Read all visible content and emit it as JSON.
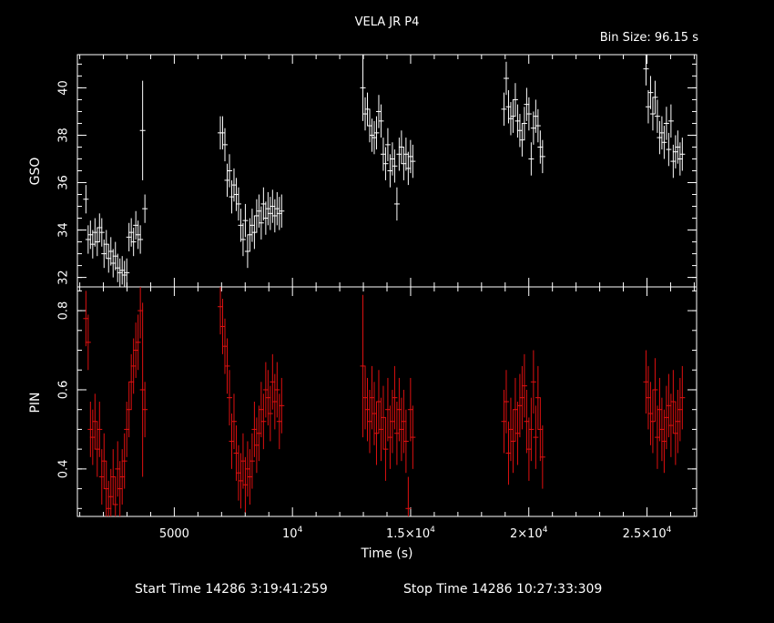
{
  "header": {
    "title": "VELA JR P4",
    "bin_size": "Bin Size: 96.15 s"
  },
  "footer": {
    "start_time": "Start Time 14286  3:19:41:259",
    "stop_time": "Stop Time 14286 10:27:33:309"
  },
  "colors": {
    "background": "#000000",
    "axes": "#ffffff",
    "gso": "#ffffff",
    "pin": "#e01010"
  },
  "chart_data": [
    {
      "type": "scatter",
      "name": "gso",
      "ylabel": "GSO",
      "xlim": [
        900,
        27100
      ],
      "ylim": [
        31.6,
        41.4
      ],
      "yticks": [
        32,
        34,
        36,
        38,
        40
      ],
      "ytick_labels": [
        "32",
        "34",
        "36",
        "38",
        "40"
      ],
      "grid": false,
      "series": [
        {
          "color": "#ffffff",
          "x": [
            1260,
            1356,
            1452,
            1548,
            1644,
            1740,
            1836,
            1932,
            2028,
            2124,
            2220,
            2316,
            2412,
            2508,
            2604,
            2700,
            2796,
            2892,
            2988,
            3084,
            3180,
            3276,
            3372,
            3468,
            3564,
            3660,
            3756,
            6950,
            7046,
            7142,
            7238,
            7334,
            7430,
            7526,
            7622,
            7718,
            7814,
            7910,
            8006,
            8102,
            8198,
            8294,
            8390,
            8486,
            8582,
            8678,
            8774,
            8870,
            8966,
            9062,
            9158,
            9254,
            9350,
            9446,
            9542,
            12980,
            13076,
            13172,
            13268,
            13364,
            13460,
            13556,
            13652,
            13748,
            13844,
            13940,
            14036,
            14132,
            14228,
            14324,
            14420,
            14516,
            14612,
            14708,
            14804,
            14900,
            14996,
            15092,
            18950,
            19046,
            19142,
            19238,
            19334,
            19430,
            19526,
            19622,
            19718,
            19814,
            19910,
            20006,
            20102,
            20198,
            20294,
            20390,
            20486,
            20582,
            24960,
            25056,
            25152,
            25248,
            25344,
            25440,
            25536,
            25632,
            25728,
            25824,
            25920,
            26016,
            26112,
            26208,
            26304,
            26400,
            26496
          ],
          "y": [
            35.3,
            33.6,
            33.8,
            33.4,
            33.9,
            33.5,
            34.1,
            33.9,
            33.0,
            33.4,
            32.8,
            33.1,
            32.6,
            32.9,
            32.4,
            32.2,
            32.3,
            32.1,
            32.2,
            33.7,
            33.9,
            33.5,
            34.2,
            33.8,
            33.6,
            38.2,
            34.9,
            38.1,
            38.1,
            37.6,
            36.1,
            36.5,
            35.4,
            35.9,
            35.5,
            35.1,
            34.2,
            33.6,
            34.4,
            33.1,
            33.8,
            34.2,
            33.9,
            34.6,
            34.8,
            34.3,
            35.1,
            34.5,
            34.9,
            34.7,
            35.0,
            34.6,
            34.9,
            34.7,
            34.8,
            40.0,
            38.9,
            39.1,
            38.4,
            38.0,
            37.9,
            38.1,
            39.0,
            38.6,
            37.2,
            36.8,
            37.6,
            36.5,
            37.0,
            36.7,
            35.1,
            37.2,
            37.5,
            36.8,
            37.2,
            36.6,
            37.1,
            36.9,
            39.1,
            40.4,
            39.2,
            38.7,
            38.8,
            39.5,
            38.6,
            38.2,
            37.8,
            38.5,
            39.3,
            38.9,
            37.0,
            38.3,
            38.8,
            38.4,
            37.5,
            37.1,
            40.8,
            39.2,
            39.8,
            38.9,
            39.6,
            38.8,
            37.9,
            38.1,
            37.7,
            38.5,
            37.4,
            38.6,
            36.9,
            37.3,
            37.5,
            37.0,
            37.2
          ],
          "err": [
            0.6,
            0.6,
            0.6,
            0.6,
            0.6,
            0.6,
            0.6,
            0.6,
            0.6,
            0.6,
            0.6,
            0.6,
            0.6,
            0.6,
            0.6,
            0.6,
            0.6,
            0.6,
            0.6,
            0.6,
            0.6,
            0.6,
            0.6,
            0.6,
            0.6,
            2.1,
            0.6,
            0.7,
            0.7,
            0.7,
            0.7,
            0.7,
            0.7,
            0.7,
            0.7,
            0.7,
            0.7,
            0.7,
            0.7,
            0.7,
            0.7,
            0.7,
            0.7,
            0.7,
            0.7,
            0.7,
            0.7,
            0.7,
            0.7,
            0.7,
            0.7,
            0.7,
            0.7,
            0.7,
            0.7,
            1.4,
            0.7,
            0.7,
            0.7,
            0.7,
            0.7,
            0.7,
            0.7,
            0.7,
            0.7,
            0.7,
            0.7,
            0.7,
            0.7,
            0.7,
            0.7,
            0.7,
            0.7,
            0.7,
            0.7,
            0.7,
            0.7,
            0.7,
            0.7,
            0.7,
            0.7,
            0.7,
            0.7,
            0.7,
            0.7,
            0.7,
            0.7,
            0.7,
            0.7,
            0.7,
            0.7,
            0.7,
            0.7,
            0.7,
            0.7,
            0.7,
            0.7,
            0.7,
            0.7,
            0.7,
            0.7,
            0.7,
            0.7,
            0.7,
            0.7,
            0.7,
            0.7,
            0.7,
            0.7,
            0.7,
            0.7,
            0.7,
            0.7
          ]
        }
      ]
    },
    {
      "type": "scatter",
      "name": "pin",
      "ylabel": "PIN",
      "xlabel": "Time (s)",
      "xlim": [
        900,
        27100
      ],
      "ylim": [
        0.28,
        0.86
      ],
      "yticks": [
        0.4,
        0.6,
        0.8
      ],
      "ytick_labels": [
        "0.4",
        "0.6",
        "0.8"
      ],
      "xticks": [
        5000,
        10000,
        15000,
        20000,
        25000
      ],
      "xtick_labels": [
        {
          "mant": "5000",
          "exp": ""
        },
        {
          "mant": "10",
          "exp": "4"
        },
        {
          "mant": "1.5×10",
          "exp": "4"
        },
        {
          "mant": "2×10",
          "exp": "4"
        },
        {
          "mant": "2.5×10",
          "exp": "4"
        }
      ],
      "grid": false,
      "series": [
        {
          "color": "#e01010",
          "x": [
            1260,
            1356,
            1452,
            1548,
            1644,
            1740,
            1836,
            1932,
            2028,
            2124,
            2220,
            2316,
            2412,
            2508,
            2604,
            2700,
            2796,
            2892,
            2988,
            3084,
            3180,
            3276,
            3372,
            3468,
            3564,
            3660,
            3756,
            6950,
            7046,
            7142,
            7238,
            7334,
            7430,
            7526,
            7622,
            7718,
            7814,
            7910,
            8006,
            8102,
            8198,
            8294,
            8390,
            8486,
            8582,
            8678,
            8774,
            8870,
            8966,
            9062,
            9158,
            9254,
            9350,
            9446,
            9542,
            12980,
            13076,
            13172,
            13268,
            13364,
            13460,
            13556,
            13652,
            13748,
            13844,
            13940,
            14036,
            14132,
            14228,
            14324,
            14420,
            14516,
            14612,
            14708,
            14804,
            14900,
            14996,
            15092,
            18950,
            19046,
            19142,
            19238,
            19334,
            19430,
            19526,
            19622,
            19718,
            19814,
            19910,
            20006,
            20102,
            20198,
            20294,
            20390,
            20486,
            20582,
            24960,
            25056,
            25152,
            25248,
            25344,
            25440,
            25536,
            25632,
            25728,
            25824,
            25920,
            26016,
            26112,
            26208,
            26304,
            26400,
            26496
          ],
          "y": [
            0.78,
            0.72,
            0.5,
            0.48,
            0.52,
            0.45,
            0.5,
            0.38,
            0.42,
            0.35,
            0.3,
            0.33,
            0.38,
            0.31,
            0.4,
            0.35,
            0.38,
            0.42,
            0.5,
            0.55,
            0.62,
            0.66,
            0.7,
            0.72,
            0.8,
            0.6,
            0.55,
            0.81,
            0.76,
            0.71,
            0.66,
            0.58,
            0.47,
            0.52,
            0.44,
            0.39,
            0.37,
            0.42,
            0.36,
            0.4,
            0.38,
            0.42,
            0.5,
            0.46,
            0.49,
            0.55,
            0.52,
            0.6,
            0.58,
            0.54,
            0.62,
            0.57,
            0.6,
            0.52,
            0.56,
            0.66,
            0.58,
            0.55,
            0.52,
            0.58,
            0.54,
            0.49,
            0.57,
            0.5,
            0.53,
            0.45,
            0.55,
            0.48,
            0.52,
            0.58,
            0.49,
            0.55,
            0.5,
            0.52,
            0.47,
            0.3,
            0.55,
            0.48,
            0.52,
            0.57,
            0.44,
            0.5,
            0.47,
            0.55,
            0.49,
            0.56,
            0.58,
            0.61,
            0.52,
            0.45,
            0.5,
            0.62,
            0.48,
            0.58,
            0.5,
            0.43,
            0.62,
            0.58,
            0.54,
            0.52,
            0.6,
            0.48,
            0.55,
            0.5,
            0.47,
            0.53,
            0.56,
            0.51,
            0.57,
            0.49,
            0.52,
            0.55,
            0.58
          ],
          "err": [
            0.07,
            0.07,
            0.07,
            0.07,
            0.07,
            0.07,
            0.07,
            0.07,
            0.07,
            0.07,
            0.07,
            0.07,
            0.07,
            0.07,
            0.07,
            0.07,
            0.07,
            0.07,
            0.07,
            0.07,
            0.07,
            0.07,
            0.07,
            0.07,
            0.07,
            0.22,
            0.07,
            0.07,
            0.07,
            0.07,
            0.07,
            0.07,
            0.07,
            0.07,
            0.07,
            0.07,
            0.07,
            0.07,
            0.07,
            0.07,
            0.07,
            0.07,
            0.07,
            0.07,
            0.07,
            0.07,
            0.07,
            0.07,
            0.07,
            0.07,
            0.07,
            0.07,
            0.07,
            0.07,
            0.07,
            0.18,
            0.08,
            0.08,
            0.08,
            0.08,
            0.08,
            0.08,
            0.08,
            0.08,
            0.08,
            0.08,
            0.08,
            0.08,
            0.08,
            0.08,
            0.08,
            0.08,
            0.08,
            0.08,
            0.08,
            0.08,
            0.08,
            0.08,
            0.08,
            0.08,
            0.08,
            0.08,
            0.08,
            0.08,
            0.08,
            0.08,
            0.08,
            0.08,
            0.08,
            0.08,
            0.08,
            0.08,
            0.08,
            0.08,
            0.08,
            0.08,
            0.08,
            0.08,
            0.08,
            0.08,
            0.08,
            0.08,
            0.08,
            0.08,
            0.08,
            0.08,
            0.08,
            0.08,
            0.08,
            0.08,
            0.08,
            0.08,
            0.08
          ]
        }
      ]
    }
  ]
}
